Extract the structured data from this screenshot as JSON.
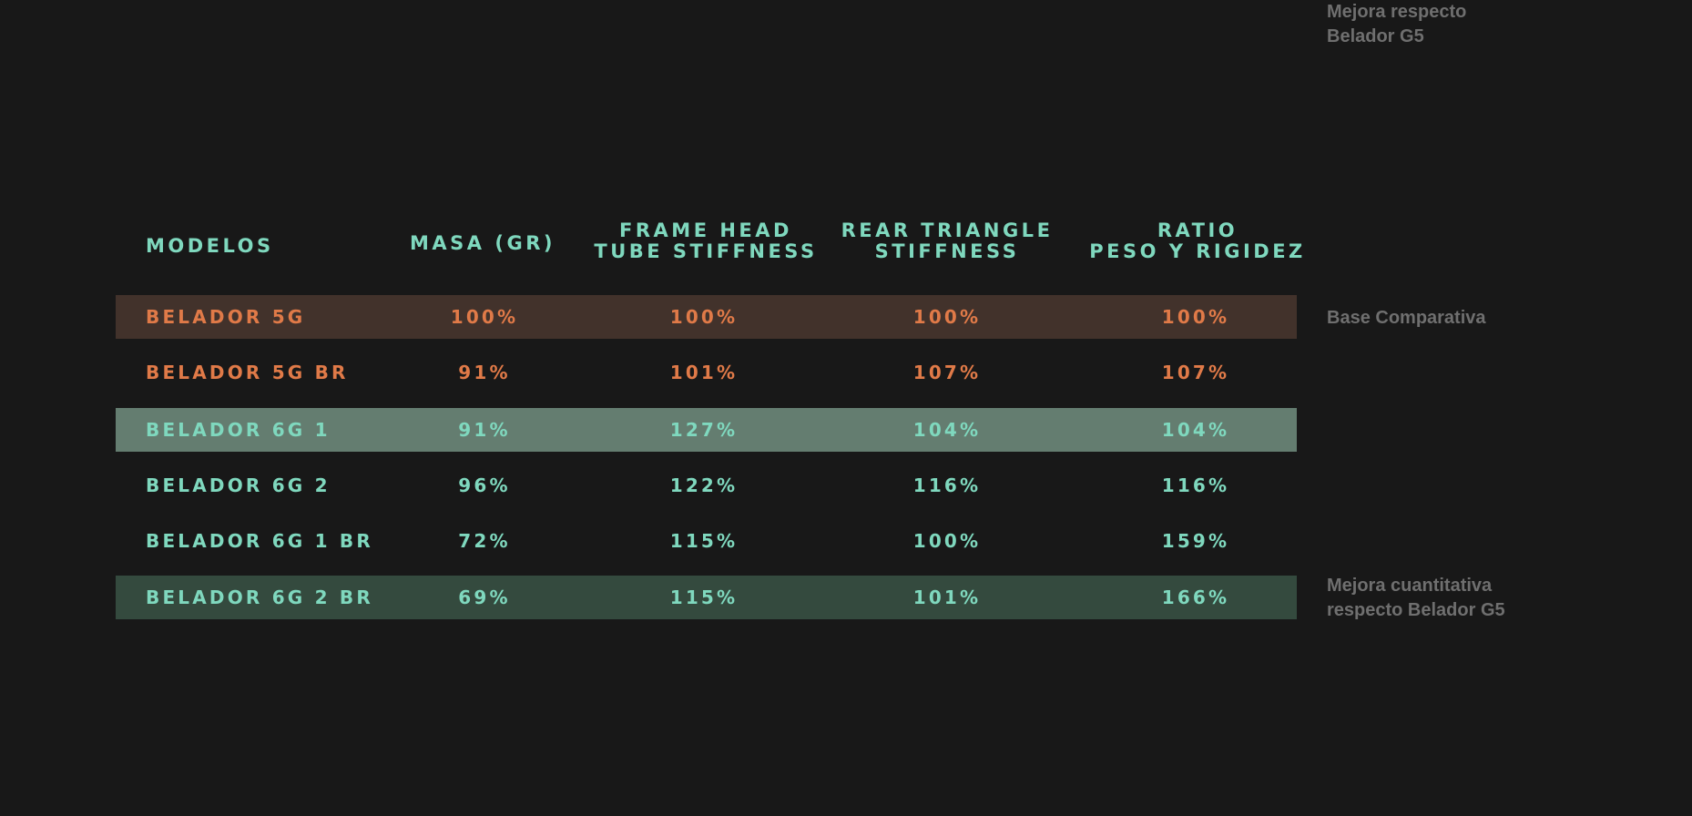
{
  "chart_data": {
    "type": "table",
    "columns": [
      "MODELOS",
      "MASA (GR)",
      "FRAME HEAD\nTUBE STIFFNESS",
      "REAR TRIANGLE\nSTIFFNESS",
      "RATIO\nPESO Y RIGIDEZ"
    ],
    "rows": [
      {
        "model": "BELADOR 5G",
        "values": [
          "100%",
          "100%",
          "100%",
          "100%"
        ],
        "text_color": "#e07a48",
        "highlight": "#42322b",
        "note": "Base Comparativa"
      },
      {
        "model": "BELADOR 5G BR",
        "values": [
          "91%",
          "101%",
          "107%",
          "107%"
        ],
        "text_color": "#e07a48",
        "highlight": "",
        "note": ""
      },
      {
        "model": "BELADOR 6G 1",
        "values": [
          "91%",
          "127%",
          "104%",
          "104%"
        ],
        "text_color": "#7fd8be",
        "highlight": "#647d70",
        "note": "Mejora respecto\nBelador G5"
      },
      {
        "model": "BELADOR 6G 2",
        "values": [
          "96%",
          "122%",
          "116%",
          "116%"
        ],
        "text_color": "#7fd8be",
        "highlight": "",
        "note": ""
      },
      {
        "model": "BELADOR 6G 1 BR",
        "values": [
          "72%",
          "115%",
          "100%",
          "159%"
        ],
        "text_color": "#7fd8be",
        "highlight": "",
        "note": ""
      },
      {
        "model": "BELADOR 6G 2 BR",
        "values": [
          "69%",
          "115%",
          "101%",
          "166%"
        ],
        "text_color": "#7fd8be",
        "highlight": "#344a3e",
        "note": "Mejora cuantitativa\nrespecto Belador G5"
      }
    ]
  },
  "colors": {
    "background": "#181818",
    "header": "#7fd8be",
    "note": "#6f6f6f"
  }
}
